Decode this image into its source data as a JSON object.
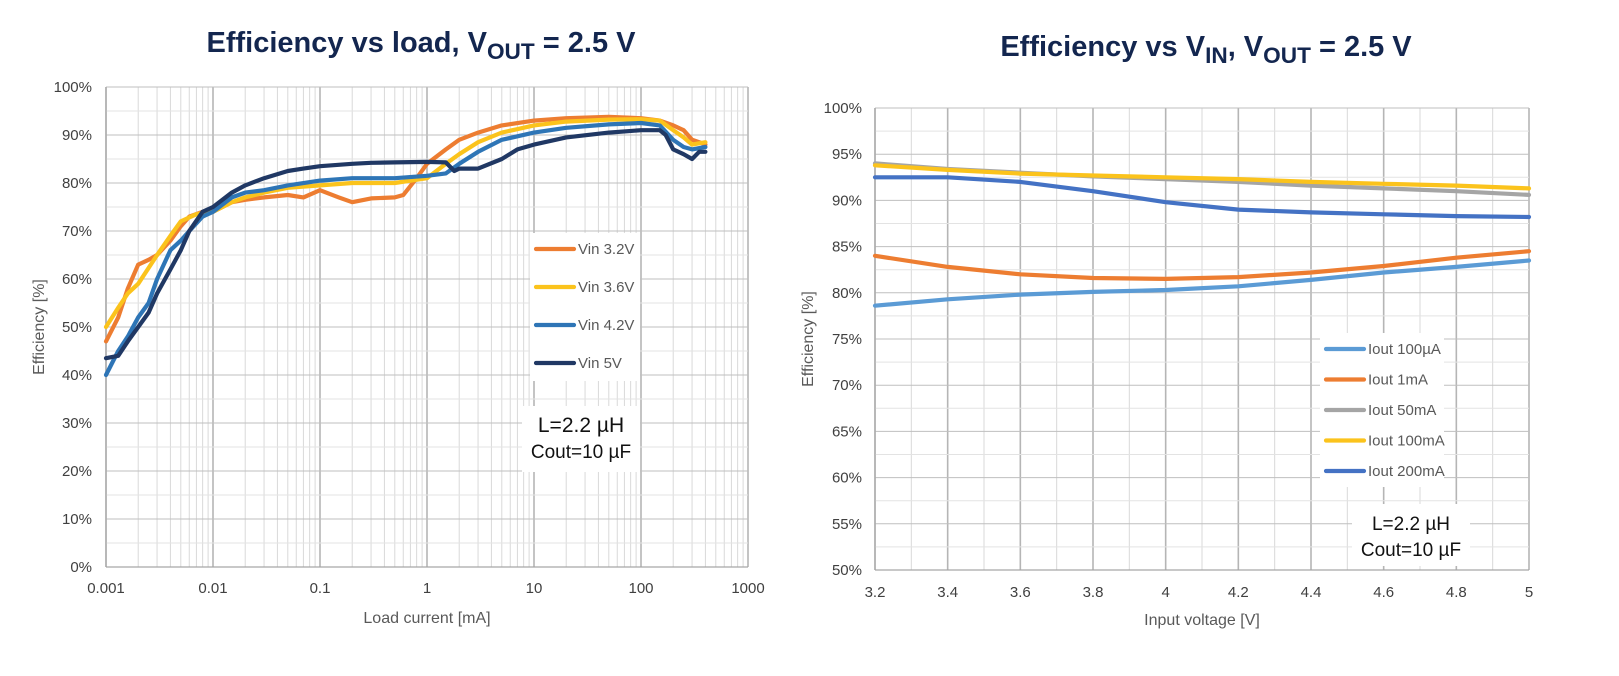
{
  "colors": {
    "orange": "#ed7d31",
    "yellow": "#fbc31c",
    "gray": "#a5a5a5",
    "lightblue": "#5b9bd5",
    "midblue": "#2e75b6",
    "steelblue": "#4472c4",
    "navy": "#203864"
  },
  "chart_data": [
    {
      "type": "line",
      "title": {
        "main": "Efficiency vs load, V",
        "sub": "OUT",
        "suffix": " = 2.5 V"
      },
      "xlabel": "Load current [mA]",
      "ylabel": "Efficiency [%]",
      "x_scale": "log",
      "xlim": [
        0.001,
        1000
      ],
      "ylim": [
        0,
        100
      ],
      "grid": true,
      "legend_position": "center-right",
      "xticks": [
        "0.001",
        "0.01",
        "0.1",
        "1",
        "10",
        "100",
        "1000"
      ],
      "yticks": [
        "0%",
        "10%",
        "20%",
        "30%",
        "40%",
        "50%",
        "60%",
        "70%",
        "80%",
        "90%",
        "100%"
      ],
      "annotation": [
        "L=2.2 µH",
        "Cout=10 µF"
      ],
      "series": [
        {
          "name": "Vin 3.2V",
          "color": "orange",
          "points": [
            [
              0.001,
              47
            ],
            [
              0.0013,
              52
            ],
            [
              0.0016,
              58
            ],
            [
              0.002,
              63
            ],
            [
              0.0025,
              64
            ],
            [
              0.003,
              65
            ],
            [
              0.004,
              68
            ],
            [
              0.005,
              71
            ],
            [
              0.006,
              73
            ],
            [
              0.008,
              74
            ],
            [
              0.01,
              74
            ],
            [
              0.015,
              76
            ],
            [
              0.02,
              76.5
            ],
            [
              0.03,
              77
            ],
            [
              0.05,
              77.5
            ],
            [
              0.07,
              77
            ],
            [
              0.1,
              78.5
            ],
            [
              0.15,
              77
            ],
            [
              0.2,
              76
            ],
            [
              0.3,
              76.8
            ],
            [
              0.5,
              77
            ],
            [
              0.6,
              77.5
            ],
            [
              0.8,
              81
            ],
            [
              1,
              84
            ],
            [
              1.5,
              87
            ],
            [
              2,
              89
            ],
            [
              3,
              90.5
            ],
            [
              5,
              92
            ],
            [
              10,
              93
            ],
            [
              20,
              93.5
            ],
            [
              50,
              93.8
            ],
            [
              100,
              93.5
            ],
            [
              150,
              93
            ],
            [
              200,
              92
            ],
            [
              250,
              91
            ],
            [
              300,
              89
            ],
            [
              350,
              88.5
            ],
            [
              400,
              88
            ]
          ]
        },
        {
          "name": "Vin 3.6V",
          "color": "yellow",
          "points": [
            [
              0.001,
              50
            ],
            [
              0.0013,
              54
            ],
            [
              0.0016,
              57
            ],
            [
              0.002,
              59
            ],
            [
              0.003,
              65
            ],
            [
              0.004,
              69
            ],
            [
              0.005,
              72
            ],
            [
              0.007,
              73.5
            ],
            [
              0.01,
              74
            ],
            [
              0.015,
              76
            ],
            [
              0.02,
              77
            ],
            [
              0.03,
              78
            ],
            [
              0.05,
              79
            ],
            [
              0.1,
              79.5
            ],
            [
              0.2,
              80
            ],
            [
              0.5,
              80
            ],
            [
              1,
              81
            ],
            [
              1.5,
              84
            ],
            [
              2,
              86
            ],
            [
              3,
              88.5
            ],
            [
              5,
              90.5
            ],
            [
              10,
              92
            ],
            [
              20,
              92.8
            ],
            [
              50,
              93.2
            ],
            [
              100,
              93.3
            ],
            [
              150,
              93
            ],
            [
              200,
              91
            ],
            [
              250,
              89.5
            ],
            [
              300,
              88
            ],
            [
              400,
              88.5
            ]
          ]
        },
        {
          "name": "Vin 4.2V",
          "color": "midblue",
          "points": [
            [
              0.001,
              40
            ],
            [
              0.0013,
              45
            ],
            [
              0.0016,
              48
            ],
            [
              0.002,
              52
            ],
            [
              0.0025,
              55
            ],
            [
              0.003,
              60
            ],
            [
              0.004,
              66
            ],
            [
              0.005,
              68
            ],
            [
              0.006,
              70
            ],
            [
              0.008,
              73
            ],
            [
              0.01,
              74
            ],
            [
              0.015,
              77
            ],
            [
              0.02,
              78
            ],
            [
              0.03,
              78.5
            ],
            [
              0.05,
              79.5
            ],
            [
              0.1,
              80.5
            ],
            [
              0.2,
              81
            ],
            [
              0.5,
              81
            ],
            [
              1,
              81.5
            ],
            [
              1.5,
              82
            ],
            [
              2,
              84
            ],
            [
              3,
              86.5
            ],
            [
              5,
              89
            ],
            [
              10,
              90.5
            ],
            [
              20,
              91.5
            ],
            [
              50,
              92.2
            ],
            [
              100,
              92.5
            ],
            [
              150,
              92
            ],
            [
              200,
              89
            ],
            [
              250,
              87.5
            ],
            [
              300,
              87
            ],
            [
              400,
              87.5
            ]
          ]
        },
        {
          "name": "Vin 5V",
          "color": "navy",
          "points": [
            [
              0.001,
              43.5
            ],
            [
              0.0013,
              44
            ],
            [
              0.0016,
              47
            ],
            [
              0.002,
              50
            ],
            [
              0.0025,
              53
            ],
            [
              0.003,
              57
            ],
            [
              0.004,
              62
            ],
            [
              0.005,
              66
            ],
            [
              0.006,
              70
            ],
            [
              0.008,
              74
            ],
            [
              0.01,
              75
            ],
            [
              0.015,
              78
            ],
            [
              0.02,
              79.5
            ],
            [
              0.03,
              81
            ],
            [
              0.05,
              82.5
            ],
            [
              0.07,
              83
            ],
            [
              0.1,
              83.5
            ],
            [
              0.2,
              84
            ],
            [
              0.3,
              84.2
            ],
            [
              0.5,
              84.3
            ],
            [
              1,
              84.4
            ],
            [
              1.5,
              84.3
            ],
            [
              1.8,
              82.5
            ],
            [
              2,
              83
            ],
            [
              3,
              83
            ],
            [
              5,
              85
            ],
            [
              7,
              87
            ],
            [
              10,
              88
            ],
            [
              20,
              89.5
            ],
            [
              50,
              90.5
            ],
            [
              100,
              91
            ],
            [
              150,
              91
            ],
            [
              170,
              90
            ],
            [
              200,
              87
            ],
            [
              250,
              86
            ],
            [
              300,
              85
            ],
            [
              350,
              86.5
            ],
            [
              400,
              86.5
            ]
          ]
        }
      ]
    },
    {
      "type": "line",
      "title": {
        "main": "Efficiency vs V",
        "sub": "IN",
        "mid": ", V",
        "sub2": "OUT",
        "suffix": " = 2.5 V"
      },
      "xlabel": "Input voltage [V]",
      "ylabel": "Efficiency [%]",
      "x_scale": "linear",
      "xlim": [
        3.2,
        5
      ],
      "ylim": [
        50,
        100
      ],
      "grid": true,
      "legend_position": "bottom-right",
      "xticks": [
        "3.2",
        "3.4",
        "3.6",
        "3.8",
        "4",
        "4.2",
        "4.4",
        "4.6",
        "4.8",
        "5"
      ],
      "yticks": [
        "50%",
        "55%",
        "60%",
        "65%",
        "70%",
        "75%",
        "80%",
        "85%",
        "90%",
        "95%",
        "100%"
      ],
      "annotation": [
        "L=2.2 µH",
        "Cout=10 µF"
      ],
      "series": [
        {
          "name": "Iout 100µA",
          "color": "lightblue",
          "points": [
            [
              3.2,
              78.6
            ],
            [
              3.4,
              79.3
            ],
            [
              3.6,
              79.8
            ],
            [
              3.8,
              80.1
            ],
            [
              4.0,
              80.3
            ],
            [
              4.2,
              80.7
            ],
            [
              4.4,
              81.4
            ],
            [
              4.6,
              82.2
            ],
            [
              4.8,
              82.8
            ],
            [
              5.0,
              83.5
            ]
          ]
        },
        {
          "name": "Iout 1mA",
          "color": "orange",
          "points": [
            [
              3.2,
              84
            ],
            [
              3.4,
              82.8
            ],
            [
              3.6,
              82
            ],
            [
              3.8,
              81.6
            ],
            [
              4.0,
              81.5
            ],
            [
              4.2,
              81.7
            ],
            [
              4.4,
              82.2
            ],
            [
              4.6,
              82.9
            ],
            [
              4.8,
              83.8
            ],
            [
              5.0,
              84.5
            ]
          ]
        },
        {
          "name": "Iout 50mA",
          "color": "gray",
          "points": [
            [
              3.2,
              94
            ],
            [
              3.4,
              93.4
            ],
            [
              3.6,
              93
            ],
            [
              3.8,
              92.6
            ],
            [
              4.0,
              92.3
            ],
            [
              4.2,
              92
            ],
            [
              4.4,
              91.6
            ],
            [
              4.6,
              91.3
            ],
            [
              4.8,
              91
            ],
            [
              5.0,
              90.6
            ]
          ]
        },
        {
          "name": "Iout 100mA",
          "color": "yellow",
          "points": [
            [
              3.2,
              93.8
            ],
            [
              3.4,
              93.3
            ],
            [
              3.6,
              92.9
            ],
            [
              3.8,
              92.7
            ],
            [
              4.0,
              92.5
            ],
            [
              4.2,
              92.3
            ],
            [
              4.4,
              92
            ],
            [
              4.6,
              91.8
            ],
            [
              4.8,
              91.6
            ],
            [
              5.0,
              91.3
            ]
          ]
        },
        {
          "name": "Iout 200mA",
          "color": "steelblue",
          "points": [
            [
              3.2,
              92.5
            ],
            [
              3.4,
              92.5
            ],
            [
              3.6,
              92
            ],
            [
              3.8,
              91
            ],
            [
              4.0,
              89.8
            ],
            [
              4.2,
              89
            ],
            [
              4.4,
              88.7
            ],
            [
              4.6,
              88.5
            ],
            [
              4.8,
              88.3
            ],
            [
              5.0,
              88.2
            ]
          ]
        }
      ]
    }
  ]
}
